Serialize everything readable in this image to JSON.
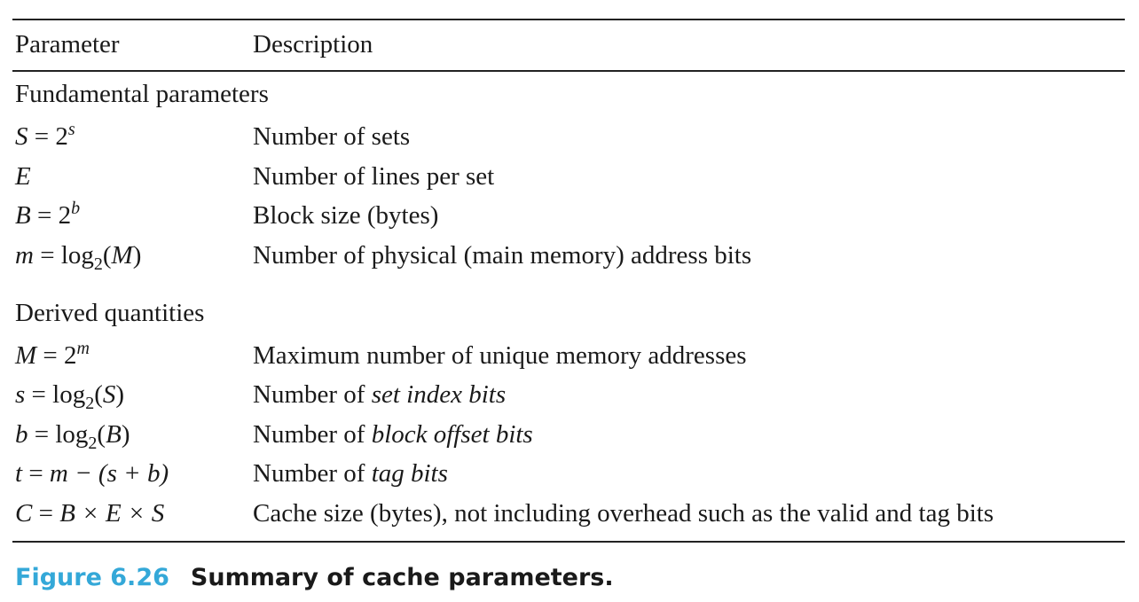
{
  "table": {
    "header": {
      "parameter": "Parameter",
      "description": "Description"
    },
    "sections": [
      {
        "title": "Fundamental parameters",
        "rows": [
          {
            "parameter": {
              "var": "S",
              "rhs_prefix": "2",
              "sup": "s"
            },
            "description": "Number of sets"
          },
          {
            "parameter": {
              "var": "E"
            },
            "description": "Number of lines per set"
          },
          {
            "parameter": {
              "var": "B",
              "rhs_prefix": "2",
              "sup": "b"
            },
            "description": "Block size (bytes)"
          },
          {
            "parameter": {
              "var": "m",
              "fn": "log",
              "sub": "2",
              "arg": "M"
            },
            "description": "Number of physical (main memory) address bits"
          }
        ]
      },
      {
        "title": "Derived quantities",
        "rows": [
          {
            "parameter": {
              "var": "M",
              "rhs_prefix": "2",
              "sup": "m"
            },
            "description": "Maximum number of unique memory addresses"
          },
          {
            "parameter": {
              "var": "s",
              "fn": "log",
              "sub": "2",
              "arg": "S"
            },
            "description_plain": "Number of ",
            "description_italic": "set index bits"
          },
          {
            "parameter": {
              "var": "b",
              "fn": "log",
              "sub": "2",
              "arg": "B"
            },
            "description_plain": "Number of ",
            "description_italic": "block offset bits"
          },
          {
            "parameter": {
              "var": "t",
              "expr": "m − (s + b)"
            },
            "description_plain": "Number of ",
            "description_italic": "tag bits"
          },
          {
            "parameter": {
              "var": "C",
              "expr": "B × E × S"
            },
            "description": "Cache size (bytes), not including overhead such as the valid and tag bits"
          }
        ]
      }
    ]
  },
  "caption": {
    "number": "Figure 6.26",
    "title": "Summary of cache parameters."
  },
  "colors": {
    "caption_number": "#34a8d8",
    "text": "#1a1a1a",
    "rules": "#222222"
  }
}
